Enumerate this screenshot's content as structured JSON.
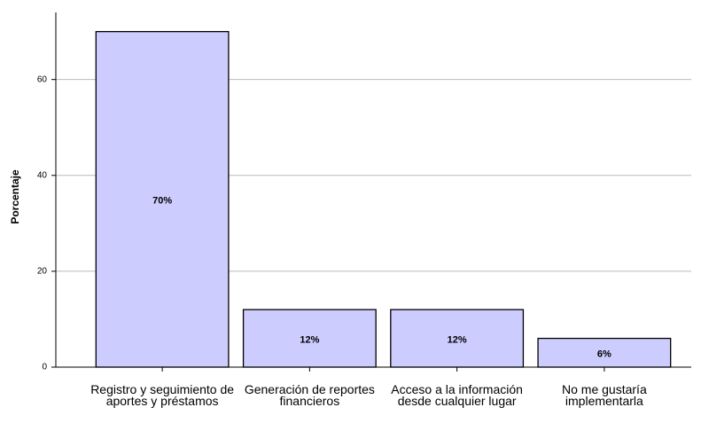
{
  "chart_data": {
    "type": "bar",
    "y_label": "Porcentaje",
    "categories": [
      "Registro y seguimiento de aportes y préstamos",
      "Generación de reportes financieros",
      "Acceso a la información desde cualquier lugar",
      "No me gustaría implementarla"
    ],
    "values": [
      70,
      12,
      12,
      6
    ],
    "value_labels": [
      "70%",
      "12%",
      "12%",
      "6%"
    ],
    "color": "#ccccff",
    "ylim": [
      0,
      74
    ],
    "yticks": [
      0,
      20,
      40,
      60
    ],
    "grid": true
  }
}
